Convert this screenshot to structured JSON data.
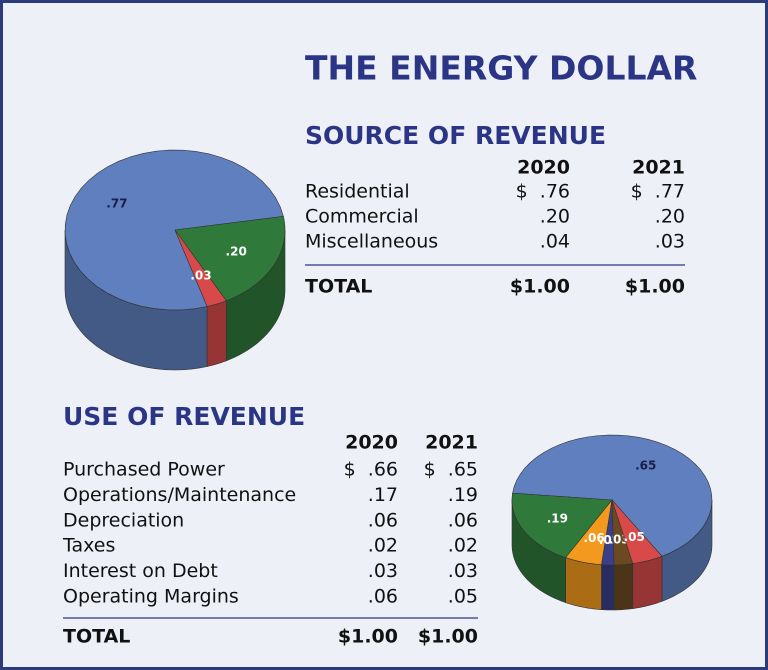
{
  "title": "THE ENERGY DOLLAR",
  "source": {
    "heading": "SOURCE OF REVENUE",
    "columns": [
      "2020",
      "2021"
    ],
    "rows": [
      [
        "Residential",
        "$  .76",
        "$  .77"
      ],
      [
        "Commercial",
        ".20",
        ".20"
      ],
      [
        "Miscellaneous",
        ".04",
        ".03"
      ]
    ],
    "total": [
      "TOTAL",
      "$1.00",
      "$1.00"
    ]
  },
  "use": {
    "heading": "USE OF REVENUE",
    "columns": [
      "2020",
      "2021"
    ],
    "rows": [
      [
        "Purchased Power",
        "$  .66",
        "$  .65"
      ],
      [
        "Operations/Maintenance",
        ".17",
        ".19"
      ],
      [
        "Depreciation",
        ".06",
        ".06"
      ],
      [
        "Taxes",
        ".02",
        ".02"
      ],
      [
        "Interest on Debt",
        ".03",
        ".03"
      ],
      [
        "Operating Margins",
        ".06",
        ".05"
      ]
    ],
    "total": [
      "TOTAL",
      "$1.00",
      "$1.00"
    ]
  },
  "chart_data": [
    {
      "type": "pie",
      "values": [
        0.77,
        0.2,
        0.03
      ],
      "value_labels": [
        ".77",
        ".20",
        ".03"
      ],
      "colors": [
        "#5f7fbf",
        "#2f7a3a",
        "#d84a4a"
      ]
    },
    {
      "type": "pie",
      "values": [
        0.65,
        0.19,
        0.06,
        0.02,
        0.03,
        0.05
      ],
      "value_labels": [
        ".65",
        ".19",
        ".06",
        ".02",
        ".03",
        ".05"
      ],
      "colors": [
        "#5f7fbf",
        "#2f7a3a",
        "#f39a1e",
        "#3a3f8a",
        "#6b4a22",
        "#d84a4a"
      ]
    }
  ]
}
